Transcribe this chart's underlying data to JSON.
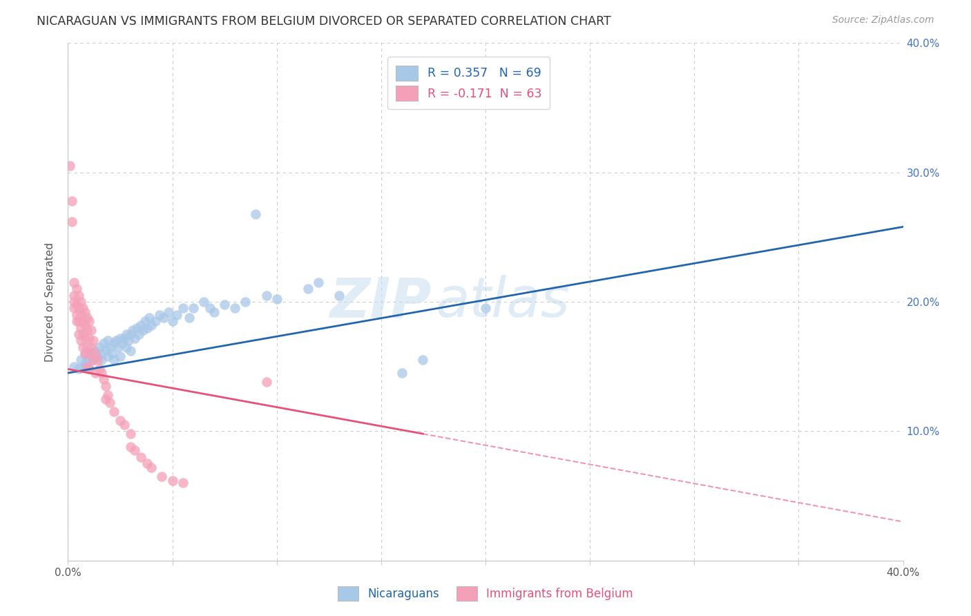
{
  "title": "NICARAGUAN VS IMMIGRANTS FROM BELGIUM DIVORCED OR SEPARATED CORRELATION CHART",
  "source": "Source: ZipAtlas.com",
  "ylabel": "Divorced or Separated",
  "xmin": 0.0,
  "xmax": 0.4,
  "ymin": 0.0,
  "ymax": 0.4,
  "blue_color": "#a8c8e8",
  "pink_color": "#f4a0b8",
  "blue_line_color": "#2166ac",
  "pink_line_color": "#e8507a",
  "watermark_zip": "ZIP",
  "watermark_atlas": "atlas",
  "blue_scatter": [
    [
      0.003,
      0.15
    ],
    [
      0.005,
      0.148
    ],
    [
      0.006,
      0.155
    ],
    [
      0.007,
      0.15
    ],
    [
      0.008,
      0.16
    ],
    [
      0.008,
      0.152
    ],
    [
      0.009,
      0.155
    ],
    [
      0.01,
      0.158
    ],
    [
      0.01,
      0.148
    ],
    [
      0.011,
      0.16
    ],
    [
      0.012,
      0.155
    ],
    [
      0.013,
      0.162
    ],
    [
      0.014,
      0.158
    ],
    [
      0.015,
      0.165
    ],
    [
      0.016,
      0.16
    ],
    [
      0.016,
      0.155
    ],
    [
      0.017,
      0.168
    ],
    [
      0.018,
      0.163
    ],
    [
      0.019,
      0.158
    ],
    [
      0.019,
      0.17
    ],
    [
      0.02,
      0.165
    ],
    [
      0.021,
      0.16
    ],
    [
      0.022,
      0.168
    ],
    [
      0.022,
      0.155
    ],
    [
      0.023,
      0.17
    ],
    [
      0.024,
      0.165
    ],
    [
      0.025,
      0.172
    ],
    [
      0.025,
      0.158
    ],
    [
      0.026,
      0.168
    ],
    [
      0.027,
      0.172
    ],
    [
      0.028,
      0.165
    ],
    [
      0.028,
      0.175
    ],
    [
      0.029,
      0.17
    ],
    [
      0.03,
      0.175
    ],
    [
      0.03,
      0.162
    ],
    [
      0.031,
      0.178
    ],
    [
      0.032,
      0.172
    ],
    [
      0.033,
      0.18
    ],
    [
      0.034,
      0.175
    ],
    [
      0.035,
      0.182
    ],
    [
      0.036,
      0.178
    ],
    [
      0.037,
      0.185
    ],
    [
      0.038,
      0.18
    ],
    [
      0.039,
      0.188
    ],
    [
      0.04,
      0.182
    ],
    [
      0.042,
      0.185
    ],
    [
      0.044,
      0.19
    ],
    [
      0.046,
      0.188
    ],
    [
      0.048,
      0.192
    ],
    [
      0.05,
      0.185
    ],
    [
      0.052,
      0.19
    ],
    [
      0.055,
      0.195
    ],
    [
      0.058,
      0.188
    ],
    [
      0.06,
      0.195
    ],
    [
      0.065,
      0.2
    ],
    [
      0.068,
      0.195
    ],
    [
      0.07,
      0.192
    ],
    [
      0.075,
      0.198
    ],
    [
      0.08,
      0.195
    ],
    [
      0.085,
      0.2
    ],
    [
      0.09,
      0.268
    ],
    [
      0.095,
      0.205
    ],
    [
      0.1,
      0.202
    ],
    [
      0.115,
      0.21
    ],
    [
      0.12,
      0.215
    ],
    [
      0.13,
      0.205
    ],
    [
      0.16,
      0.145
    ],
    [
      0.17,
      0.155
    ],
    [
      0.2,
      0.195
    ]
  ],
  "pink_scatter": [
    [
      0.001,
      0.305
    ],
    [
      0.002,
      0.278
    ],
    [
      0.002,
      0.262
    ],
    [
      0.003,
      0.215
    ],
    [
      0.003,
      0.205
    ],
    [
      0.003,
      0.2
    ],
    [
      0.003,
      0.195
    ],
    [
      0.004,
      0.21
    ],
    [
      0.004,
      0.198
    ],
    [
      0.004,
      0.19
    ],
    [
      0.004,
      0.185
    ],
    [
      0.005,
      0.205
    ],
    [
      0.005,
      0.195
    ],
    [
      0.005,
      0.185
    ],
    [
      0.005,
      0.175
    ],
    [
      0.006,
      0.2
    ],
    [
      0.006,
      0.19
    ],
    [
      0.006,
      0.18
    ],
    [
      0.006,
      0.17
    ],
    [
      0.007,
      0.195
    ],
    [
      0.007,
      0.185
    ],
    [
      0.007,
      0.175
    ],
    [
      0.007,
      0.165
    ],
    [
      0.008,
      0.192
    ],
    [
      0.008,
      0.182
    ],
    [
      0.008,
      0.172
    ],
    [
      0.008,
      0.16
    ],
    [
      0.009,
      0.188
    ],
    [
      0.009,
      0.178
    ],
    [
      0.009,
      0.165
    ],
    [
      0.009,
      0.15
    ],
    [
      0.01,
      0.185
    ],
    [
      0.01,
      0.172
    ],
    [
      0.01,
      0.16
    ],
    [
      0.01,
      0.148
    ],
    [
      0.011,
      0.178
    ],
    [
      0.011,
      0.165
    ],
    [
      0.012,
      0.17
    ],
    [
      0.012,
      0.155
    ],
    [
      0.013,
      0.16
    ],
    [
      0.013,
      0.145
    ],
    [
      0.014,
      0.155
    ],
    [
      0.015,
      0.148
    ],
    [
      0.016,
      0.145
    ],
    [
      0.017,
      0.14
    ],
    [
      0.018,
      0.135
    ],
    [
      0.018,
      0.125
    ],
    [
      0.019,
      0.128
    ],
    [
      0.02,
      0.122
    ],
    [
      0.022,
      0.115
    ],
    [
      0.025,
      0.108
    ],
    [
      0.027,
      0.105
    ],
    [
      0.03,
      0.098
    ],
    [
      0.03,
      0.088
    ],
    [
      0.032,
      0.085
    ],
    [
      0.035,
      0.08
    ],
    [
      0.038,
      0.075
    ],
    [
      0.04,
      0.072
    ],
    [
      0.045,
      0.065
    ],
    [
      0.05,
      0.062
    ],
    [
      0.055,
      0.06
    ],
    [
      0.095,
      0.138
    ]
  ],
  "blue_line": [
    [
      0.0,
      0.145
    ],
    [
      0.4,
      0.258
    ]
  ],
  "pink_line_solid": [
    [
      0.0,
      0.148
    ],
    [
      0.17,
      0.098
    ]
  ],
  "pink_line_dashed": [
    [
      0.17,
      0.098
    ],
    [
      0.4,
      0.03
    ]
  ]
}
